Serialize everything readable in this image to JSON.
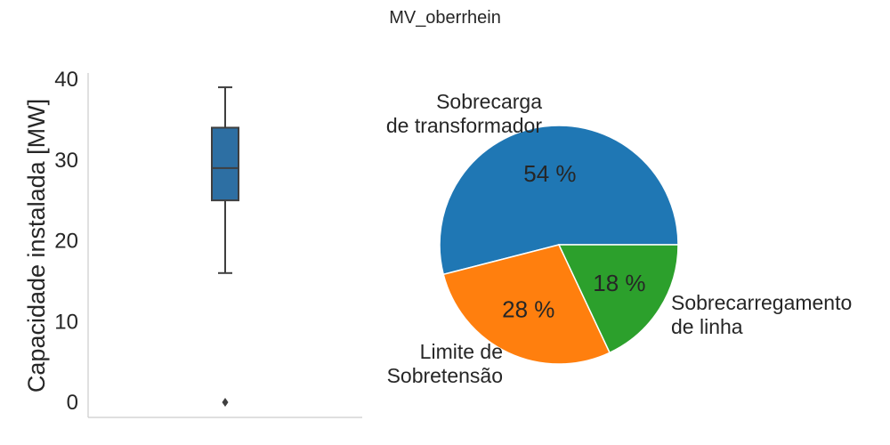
{
  "figure_title": "MV_oberrhein",
  "chart_data": [
    {
      "type": "box",
      "ylabel": "Capacidade instalada [MW]",
      "ylim": [
        -2,
        41
      ],
      "yticks": [
        0,
        10,
        20,
        30,
        40
      ],
      "grid": false,
      "box": {
        "whisker_low": 16,
        "q1": 25,
        "median": 29,
        "q3": 34,
        "whisker_high": 39,
        "outliers": [
          0
        ],
        "color": "#2d6fa3"
      }
    },
    {
      "type": "pie",
      "slices": [
        {
          "label_lines": [
            "Sobrecarga",
            "de transformador"
          ],
          "value": 54,
          "pct_label": "54 %",
          "color": "#1f77b4"
        },
        {
          "label_lines": [
            "Limite de",
            "Sobretensão"
          ],
          "value": 28,
          "pct_label": "28 %",
          "color": "#ff7f0e"
        },
        {
          "label_lines": [
            "Sobrecarregamento",
            "de linha"
          ],
          "value": 18,
          "pct_label": "18 %",
          "color": "#2ca02c"
        }
      ]
    }
  ]
}
